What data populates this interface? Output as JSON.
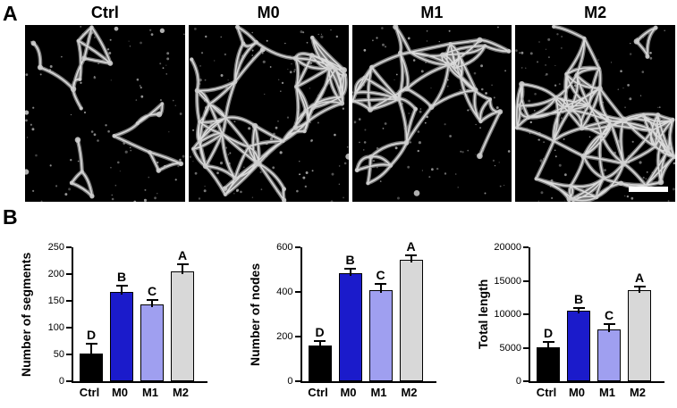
{
  "figure": {
    "panel_a_label": "A",
    "panel_b_label": "B",
    "conditions": [
      "Ctrl",
      "M0",
      "M1",
      "M2"
    ]
  },
  "bar_colors": [
    "#000000",
    "#1b1bcb",
    "#9f9ff0",
    "#d8d8d8"
  ],
  "chart_data": [
    {
      "type": "bar",
      "categories": [
        "Ctrl",
        "M0",
        "M1",
        "M2"
      ],
      "values": [
        52,
        167,
        143,
        205
      ],
      "errors": [
        18,
        12,
        8,
        13
      ],
      "sig_labels": [
        "D",
        "B",
        "C",
        "A"
      ],
      "title": "",
      "xlabel": "",
      "ylabel": "Number of segments",
      "ylim": [
        0,
        250
      ],
      "yticks": [
        0,
        50,
        100,
        150,
        200,
        250
      ],
      "grid": false,
      "legend": false
    },
    {
      "type": "bar",
      "categories": [
        "Ctrl",
        "M0",
        "M1",
        "M2"
      ],
      "values": [
        160,
        483,
        410,
        545
      ],
      "errors": [
        22,
        22,
        28,
        18
      ],
      "sig_labels": [
        "D",
        "B",
        "C",
        "A"
      ],
      "title": "",
      "xlabel": "",
      "ylabel": "Number of nodes",
      "ylim": [
        0,
        600
      ],
      "yticks": [
        0,
        200,
        400,
        600
      ],
      "grid": false,
      "legend": false
    },
    {
      "type": "bar",
      "categories": [
        "Ctrl",
        "M0",
        "M1",
        "M2"
      ],
      "values": [
        5100,
        10500,
        7800,
        13600
      ],
      "errors": [
        800,
        500,
        700,
        600
      ],
      "sig_labels": [
        "D",
        "B",
        "C",
        "A"
      ],
      "title": "",
      "xlabel": "",
      "ylabel": "Total length",
      "ylim": [
        0,
        20000
      ],
      "yticks": [
        0,
        5000,
        10000,
        15000,
        20000
      ],
      "grid": false,
      "legend": false
    }
  ]
}
